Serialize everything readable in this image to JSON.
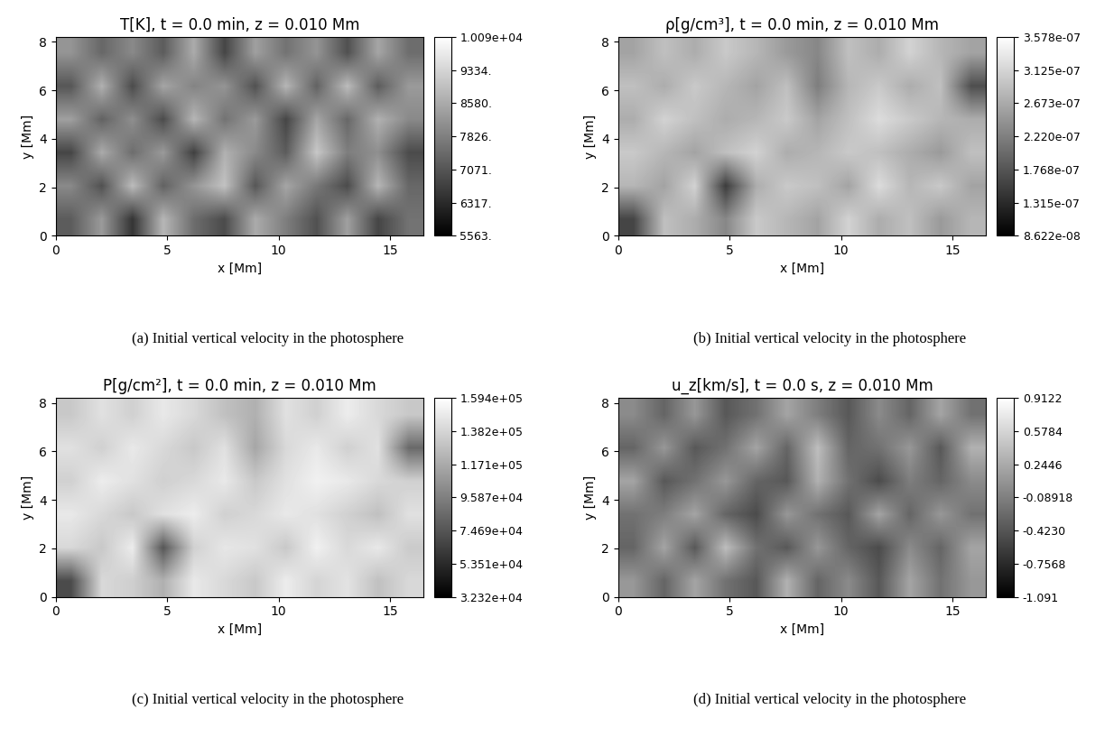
{
  "chart_data": [
    {
      "type": "heatmap",
      "title": "T[K], t = 0.0 min, z = 0.010 Mm",
      "caption": "(a) Initial vertical velocity in the photosphere",
      "xlabel": "x [Mm]",
      "ylabel": "y [Mm]",
      "xlim": [
        0,
        16.5
      ],
      "ylim": [
        0,
        8.2
      ],
      "xticks": [
        0,
        5,
        10,
        15
      ],
      "yticks": [
        0,
        2,
        4,
        6,
        8
      ],
      "cells": [
        [
          7200,
          8300,
          6500,
          8800,
          7500,
          6900,
          8600,
          7800,
          7000,
          8400,
          6800,
          7600
        ],
        [
          8000,
          7000,
          8900,
          7300,
          8200,
          9000,
          7100,
          8500,
          7700,
          6900,
          8800,
          7400
        ],
        [
          6800,
          8600,
          7500,
          8300,
          6700,
          8700,
          8000,
          7200,
          9100,
          7800,
          8100,
          6900
        ],
        [
          8400,
          7300,
          8100,
          6900,
          8800,
          7600,
          8300,
          6800,
          8500,
          7400,
          8700,
          8000
        ],
        [
          7100,
          8700,
          6900,
          8500,
          7900,
          8200,
          7000,
          8800,
          7300,
          8900,
          7200,
          8300
        ],
        [
          8200,
          7400,
          8000,
          7200,
          8600,
          6800,
          8400,
          7600,
          8200,
          7000,
          8500,
          7500
        ]
      ],
      "colorbar": {
        "range": [
          5563,
          10090
        ],
        "ticks": [
          {
            "value": 5563,
            "label": "5563."
          },
          {
            "value": 6317,
            "label": "6317."
          },
          {
            "value": 7071,
            "label": "7071."
          },
          {
            "value": 7826,
            "label": "7826."
          },
          {
            "value": 8580,
            "label": "8580."
          },
          {
            "value": 9334,
            "label": "9334."
          },
          {
            "value": 10090,
            "label": "1.009e+04"
          }
        ]
      }
    },
    {
      "type": "heatmap",
      "title": "ρ[g/cm³], t = 0.0 min, z = 0.010 Mm",
      "caption": "(b) Initial vertical velocity in the photosphere",
      "xlabel": "x [Mm]",
      "ylabel": "y [Mm]",
      "xlim": [
        0,
        16.5
      ],
      "ylim": [
        0,
        8.2
      ],
      "xticks": [
        0,
        5,
        10,
        15
      ],
      "yticks": [
        0,
        2,
        4,
        6,
        8
      ],
      "cells": [
        [
          1.6e-07,
          2.9e-07,
          2.7e-07,
          2.3e-07,
          3e-07,
          2.8e-07,
          2.6e-07,
          3.1e-07,
          2.7e-07,
          2.9e-07,
          2.5e-07,
          2.8e-07
        ],
        [
          2.8e-07,
          2.6e-07,
          3.1e-07,
          1.5e-07,
          2.7e-07,
          3e-07,
          2.9e-07,
          2.6e-07,
          3.2e-07,
          2.8e-07,
          3e-07,
          2.6e-07
        ],
        [
          3e-07,
          2.8e-07,
          2.6e-07,
          2.9e-07,
          3.1e-07,
          2.7e-07,
          2.8e-07,
          3e-07,
          2.9e-07,
          2.7e-07,
          2.5e-07,
          2.9e-07
        ],
        [
          2.7e-07,
          3.1e-07,
          2.9e-07,
          2.7e-07,
          2.8e-07,
          3e-07,
          2.6e-07,
          2.9e-07,
          3.2e-07,
          3e-07,
          2.8e-07,
          2.7e-07
        ],
        [
          2.9e-07,
          2.7e-07,
          3e-07,
          2.8e-07,
          2.6e-07,
          2.9e-07,
          2.2e-07,
          2.8e-07,
          3e-07,
          2.7e-07,
          2.9e-07,
          1.7e-07
        ],
        [
          2.6e-07,
          2.9e-07,
          2.7e-07,
          3e-07,
          2.8e-07,
          2.5e-07,
          2.3e-07,
          2.9e-07,
          2.7e-07,
          3.1e-07,
          2.8e-07,
          2.6e-07
        ]
      ],
      "colorbar": {
        "range": [
          8.622e-08,
          3.578e-07
        ],
        "ticks": [
          {
            "value": 8.622e-08,
            "label": "8.622e-08"
          },
          {
            "value": 1.315e-07,
            "label": "1.315e-07"
          },
          {
            "value": 1.768e-07,
            "label": "1.768e-07"
          },
          {
            "value": 2.22e-07,
            "label": "2.220e-07"
          },
          {
            "value": 2.673e-07,
            "label": "2.673e-07"
          },
          {
            "value": 3.125e-07,
            "label": "3.125e-07"
          },
          {
            "value": 3.578e-07,
            "label": "3.578e-07"
          }
        ]
      }
    },
    {
      "type": "heatmap",
      "title": "P[g/cm²], t = 0.0 min, z = 0.010 Mm",
      "caption": "(c) Initial vertical velocity in the photosphere",
      "xlabel": "x [Mm]",
      "ylabel": "y [Mm]",
      "xlim": [
        0,
        16.5
      ],
      "ylim": [
        0,
        8.2
      ],
      "xticks": [
        0,
        5,
        10,
        15
      ],
      "yticks": [
        0,
        2,
        4,
        6,
        8
      ],
      "cells": [
        [
          70000,
          140000,
          135000,
          120000,
          148000,
          140000,
          132000,
          150000,
          138000,
          145000,
          128000,
          140000
        ],
        [
          140000,
          132000,
          150000,
          75000,
          136000,
          147000,
          144000,
          132000,
          152000,
          140000,
          148000,
          133000
        ],
        [
          148000,
          140000,
          132000,
          144000,
          150000,
          136000,
          140000,
          148000,
          144000,
          136000,
          128000,
          144000
        ],
        [
          136000,
          150000,
          144000,
          136000,
          140000,
          148000,
          132000,
          144000,
          152000,
          148000,
          140000,
          136000
        ],
        [
          144000,
          136000,
          148000,
          140000,
          132000,
          144000,
          115000,
          140000,
          148000,
          136000,
          144000,
          85000
        ],
        [
          132000,
          144000,
          136000,
          148000,
          140000,
          128000,
          120000,
          144000,
          136000,
          150000,
          140000,
          132000
        ]
      ],
      "colorbar": {
        "range": [
          32320,
          159400
        ],
        "ticks": [
          {
            "value": 32320,
            "label": "3.232e+04"
          },
          {
            "value": 53510,
            "label": "5.351e+04"
          },
          {
            "value": 74690,
            "label": "7.469e+04"
          },
          {
            "value": 95870,
            "label": "9.587e+04"
          },
          {
            "value": 117100,
            "label": "1.171e+05"
          },
          {
            "value": 138200,
            "label": "1.382e+05"
          },
          {
            "value": 159400,
            "label": "1.594e+05"
          }
        ]
      }
    },
    {
      "type": "heatmap",
      "title": "u_z[km/s], t = 0.0 s, z = 0.010 Mm",
      "caption": "(d) Initial vertical velocity in the photosphere",
      "xlabel": "x [Mm]",
      "ylabel": "y [Mm]",
      "xlim": [
        0,
        16.5
      ],
      "ylim": [
        0,
        8.2
      ],
      "xticks": [
        0,
        5,
        10,
        15
      ],
      "yticks": [
        0,
        2,
        4,
        6,
        8
      ],
      "cells": [
        [
          0.1,
          -0.3,
          0.2,
          -0.2,
          -0.4,
          0.3,
          -0.3,
          0.0,
          -0.4,
          0.2,
          -0.2,
          0.1
        ],
        [
          -0.3,
          0.2,
          -0.4,
          0.4,
          -0.2,
          -0.4,
          0.1,
          -0.3,
          -0.5,
          0.0,
          -0.3,
          0.2
        ],
        [
          -0.2,
          -0.1,
          0.2,
          -0.3,
          -0.5,
          0.1,
          -0.2,
          -0.4,
          0.2,
          -0.3,
          0.1,
          -0.2
        ],
        [
          0.2,
          -0.4,
          -0.2,
          0.1,
          -0.3,
          -0.4,
          0.3,
          -0.2,
          -0.5,
          -0.1,
          -0.3,
          0.0
        ],
        [
          -0.3,
          0.1,
          -0.4,
          -0.2,
          0.2,
          -0.3,
          0.4,
          -0.3,
          -0.2,
          0.1,
          -0.4,
          0.3
        ],
        [
          0.0,
          -0.3,
          0.1,
          -0.4,
          -0.2,
          0.2,
          -0.1,
          -0.4,
          0.0,
          -0.3,
          0.2,
          -0.2
        ]
      ],
      "colorbar": {
        "range": [
          -1.091,
          0.9122
        ],
        "ticks": [
          -1.091,
          -0.7568,
          {
            "value": -0.423,
            "label": "-0.4230"
          },
          -0.08918,
          0.2446,
          0.5784,
          0.9122
        ]
      }
    }
  ]
}
